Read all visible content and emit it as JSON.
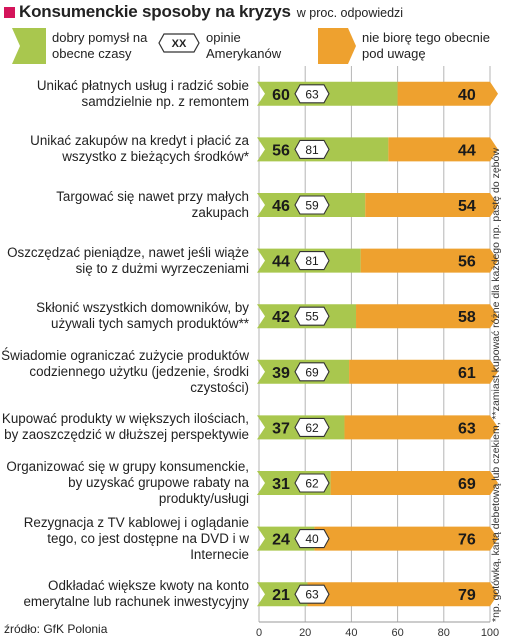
{
  "title": "Konsumenckie sposoby na kryzys",
  "subtitle": "w proc. odpowiedzi",
  "legend": {
    "good": "dobry pomysł na obecne czasy",
    "opinion_marker": "XX",
    "opinion": "opinie Amerykanów",
    "not_considered": "nie biorę tego obecnie pod uwagę"
  },
  "colors": {
    "good": "#a9c74e",
    "not_considered": "#eea12f",
    "title_marker": "#d4145a"
  },
  "source": "źródło: GfK Polonia",
  "side_note": "*np. gotówką, kartą debetową lub czekiem, **zamiast kupować różne dla każdego np. pastę do zębów",
  "chart_data": {
    "type": "bar",
    "orientation": "horizontal",
    "stacked": true,
    "categories": [
      "Unikać płatnych usług i radzić sobie samdzielnie np. z remontem",
      "Unikać zakupów na kredyt i płacić za wszystko z bieżących środków*",
      "Targować się nawet przy małych zakupach",
      "Oszczędzać pieniądze, nawet jeśli wiąże się to z dużmi wyrzeczeniami",
      "Skłonić wszystkich domowników, by używali tych samych produktów**",
      "Świadomie ograniczać zużycie produktów codziennego użytku (jedzenie, środki czystości)",
      "Kupować produkty w większych ilościach, by zaoszczędzić w dłuższej perspektywie",
      "Organizować się w grupy konsumenckie, by uzyskać grupowe rabaty na produkty/usługi",
      "Rezygnacja z TV kablowej i oglądanie tego, co jest dostępne na DVD i w Internecie",
      "Odkładać większe kwoty na konto emerytalne lub rachunek inwestycyjny"
    ],
    "series": [
      {
        "name": "dobry pomysł na obecne czasy",
        "values": [
          60,
          56,
          46,
          44,
          42,
          39,
          37,
          31,
          24,
          21
        ]
      },
      {
        "name": "nie biorę tego obecnie pod uwagę",
        "values": [
          40,
          44,
          54,
          56,
          58,
          61,
          63,
          69,
          76,
          79
        ]
      }
    ],
    "comparison": {
      "name": "opinie Amerykanów",
      "values": [
        63,
        81,
        59,
        81,
        55,
        69,
        62,
        62,
        40,
        63
      ]
    },
    "xlim": [
      0,
      100
    ],
    "xticks": [
      0,
      20,
      40,
      60,
      80,
      100
    ],
    "grid": true
  }
}
